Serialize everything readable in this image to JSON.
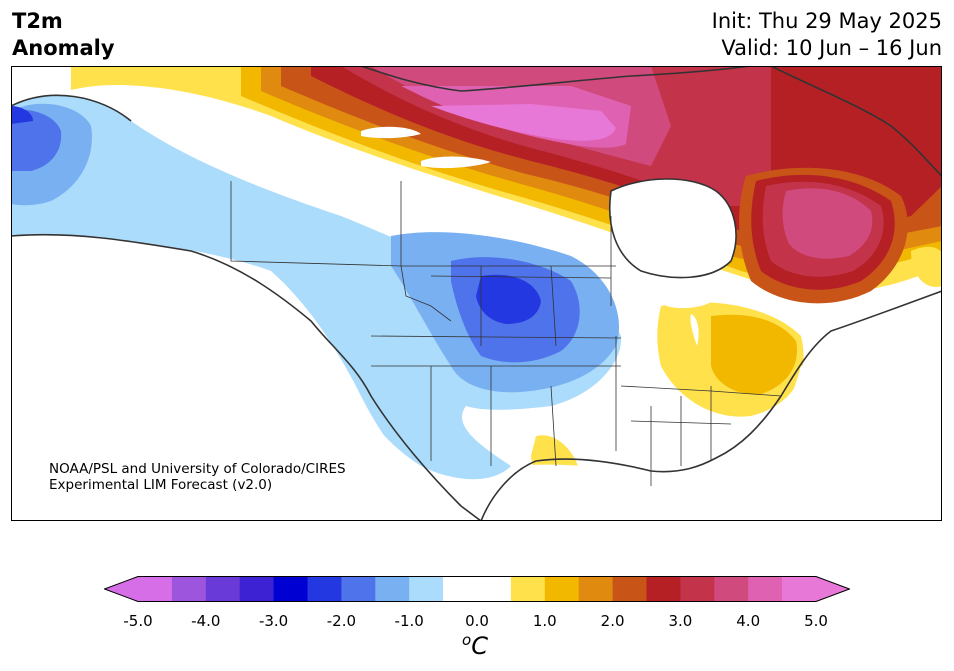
{
  "title": {
    "line1": "T2m",
    "line2": "Anomaly"
  },
  "forecast": {
    "init": "Init: Thu 29 May 2025",
    "valid": "Valid: 10 Jun – 16 Jun"
  },
  "credit": {
    "line1": "NOAA/PSL and University of Colorado/CIRES",
    "line2": "Experimental LIM Forecast (v2.0)"
  },
  "colorbar": {
    "ticks": [
      "-5.0",
      "-4.0",
      "-3.0",
      "-2.0",
      "-1.0",
      "0.0",
      "1.0",
      "2.0",
      "3.0",
      "4.0",
      "5.0"
    ],
    "units_main": "C",
    "units_sup": "o",
    "colors": [
      "#d66ee8",
      "#9d55de",
      "#6a3ad8",
      "#3d22d4",
      "#0000d2",
      "#2338e0",
      "#4f73ea",
      "#79b0f2",
      "#acdcfb",
      "#ffffff",
      "#ffffff",
      "#ffe14c",
      "#f2b800",
      "#e08a10",
      "#c85418",
      "#b52025",
      "#c3334a",
      "#d14a7d",
      "#df62b2",
      "#e878d8"
    ],
    "low_arrow": "#d66ee8",
    "high_arrow": "#e878d8"
  }
}
